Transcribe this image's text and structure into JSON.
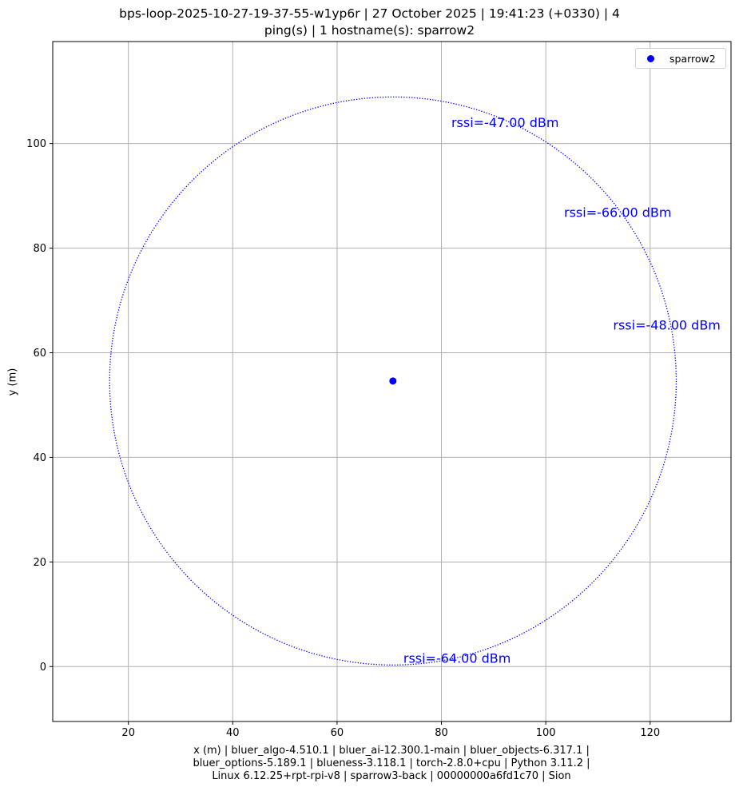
{
  "chart_data": {
    "type": "scatter",
    "title_lines": [
      "bps-loop-2025-10-27-19-37-55-w1yp6r | 27 October 2025 | 19:41:23 (+0330) | 4",
      "ping(s) | 1 hostname(s): sparrow2"
    ],
    "xlabel_lines": [
      "x (m) | bluer_algo-4.510.1 | bluer_ai-12.300.1-main | bluer_objects-6.317.1 |",
      "bluer_options-5.189.1 | blueness-3.118.1 | torch-2.8.0+cpu | Python 3.11.2 |",
      "Linux 6.12.25+rpt-rpi-v8 | sparrow3-back | 00000000a6fd1c70 | Sion"
    ],
    "ylabel": "y (m)",
    "xlim": [
      5.5,
      135.5
    ],
    "ylim": [
      -10.5,
      119.5
    ],
    "xticks": [
      20,
      40,
      60,
      80,
      100,
      120
    ],
    "yticks": [
      0,
      20,
      40,
      60,
      80,
      100
    ],
    "grid": true,
    "legend_position": "top-right",
    "series": [
      {
        "name": "sparrow2",
        "color": "#0000ff",
        "points": [
          {
            "x": 70.7,
            "y": 54.6
          }
        ]
      }
    ],
    "circle": {
      "cx": 70.7,
      "cy": 54.6,
      "r": 54.3,
      "color": "#0000ff",
      "style": "dotted"
    },
    "annotations": [
      {
        "text": "rssi=-47.00 dBm",
        "x": 81.9,
        "y": 104.0
      },
      {
        "text": "rssi=-66.00 dBm",
        "x": 103.5,
        "y": 86.8
      },
      {
        "text": "rssi=-48.00 dBm",
        "x": 112.9,
        "y": 65.3
      },
      {
        "text": "rssi=-64.00 dBm",
        "x": 72.7,
        "y": 1.6
      }
    ]
  }
}
